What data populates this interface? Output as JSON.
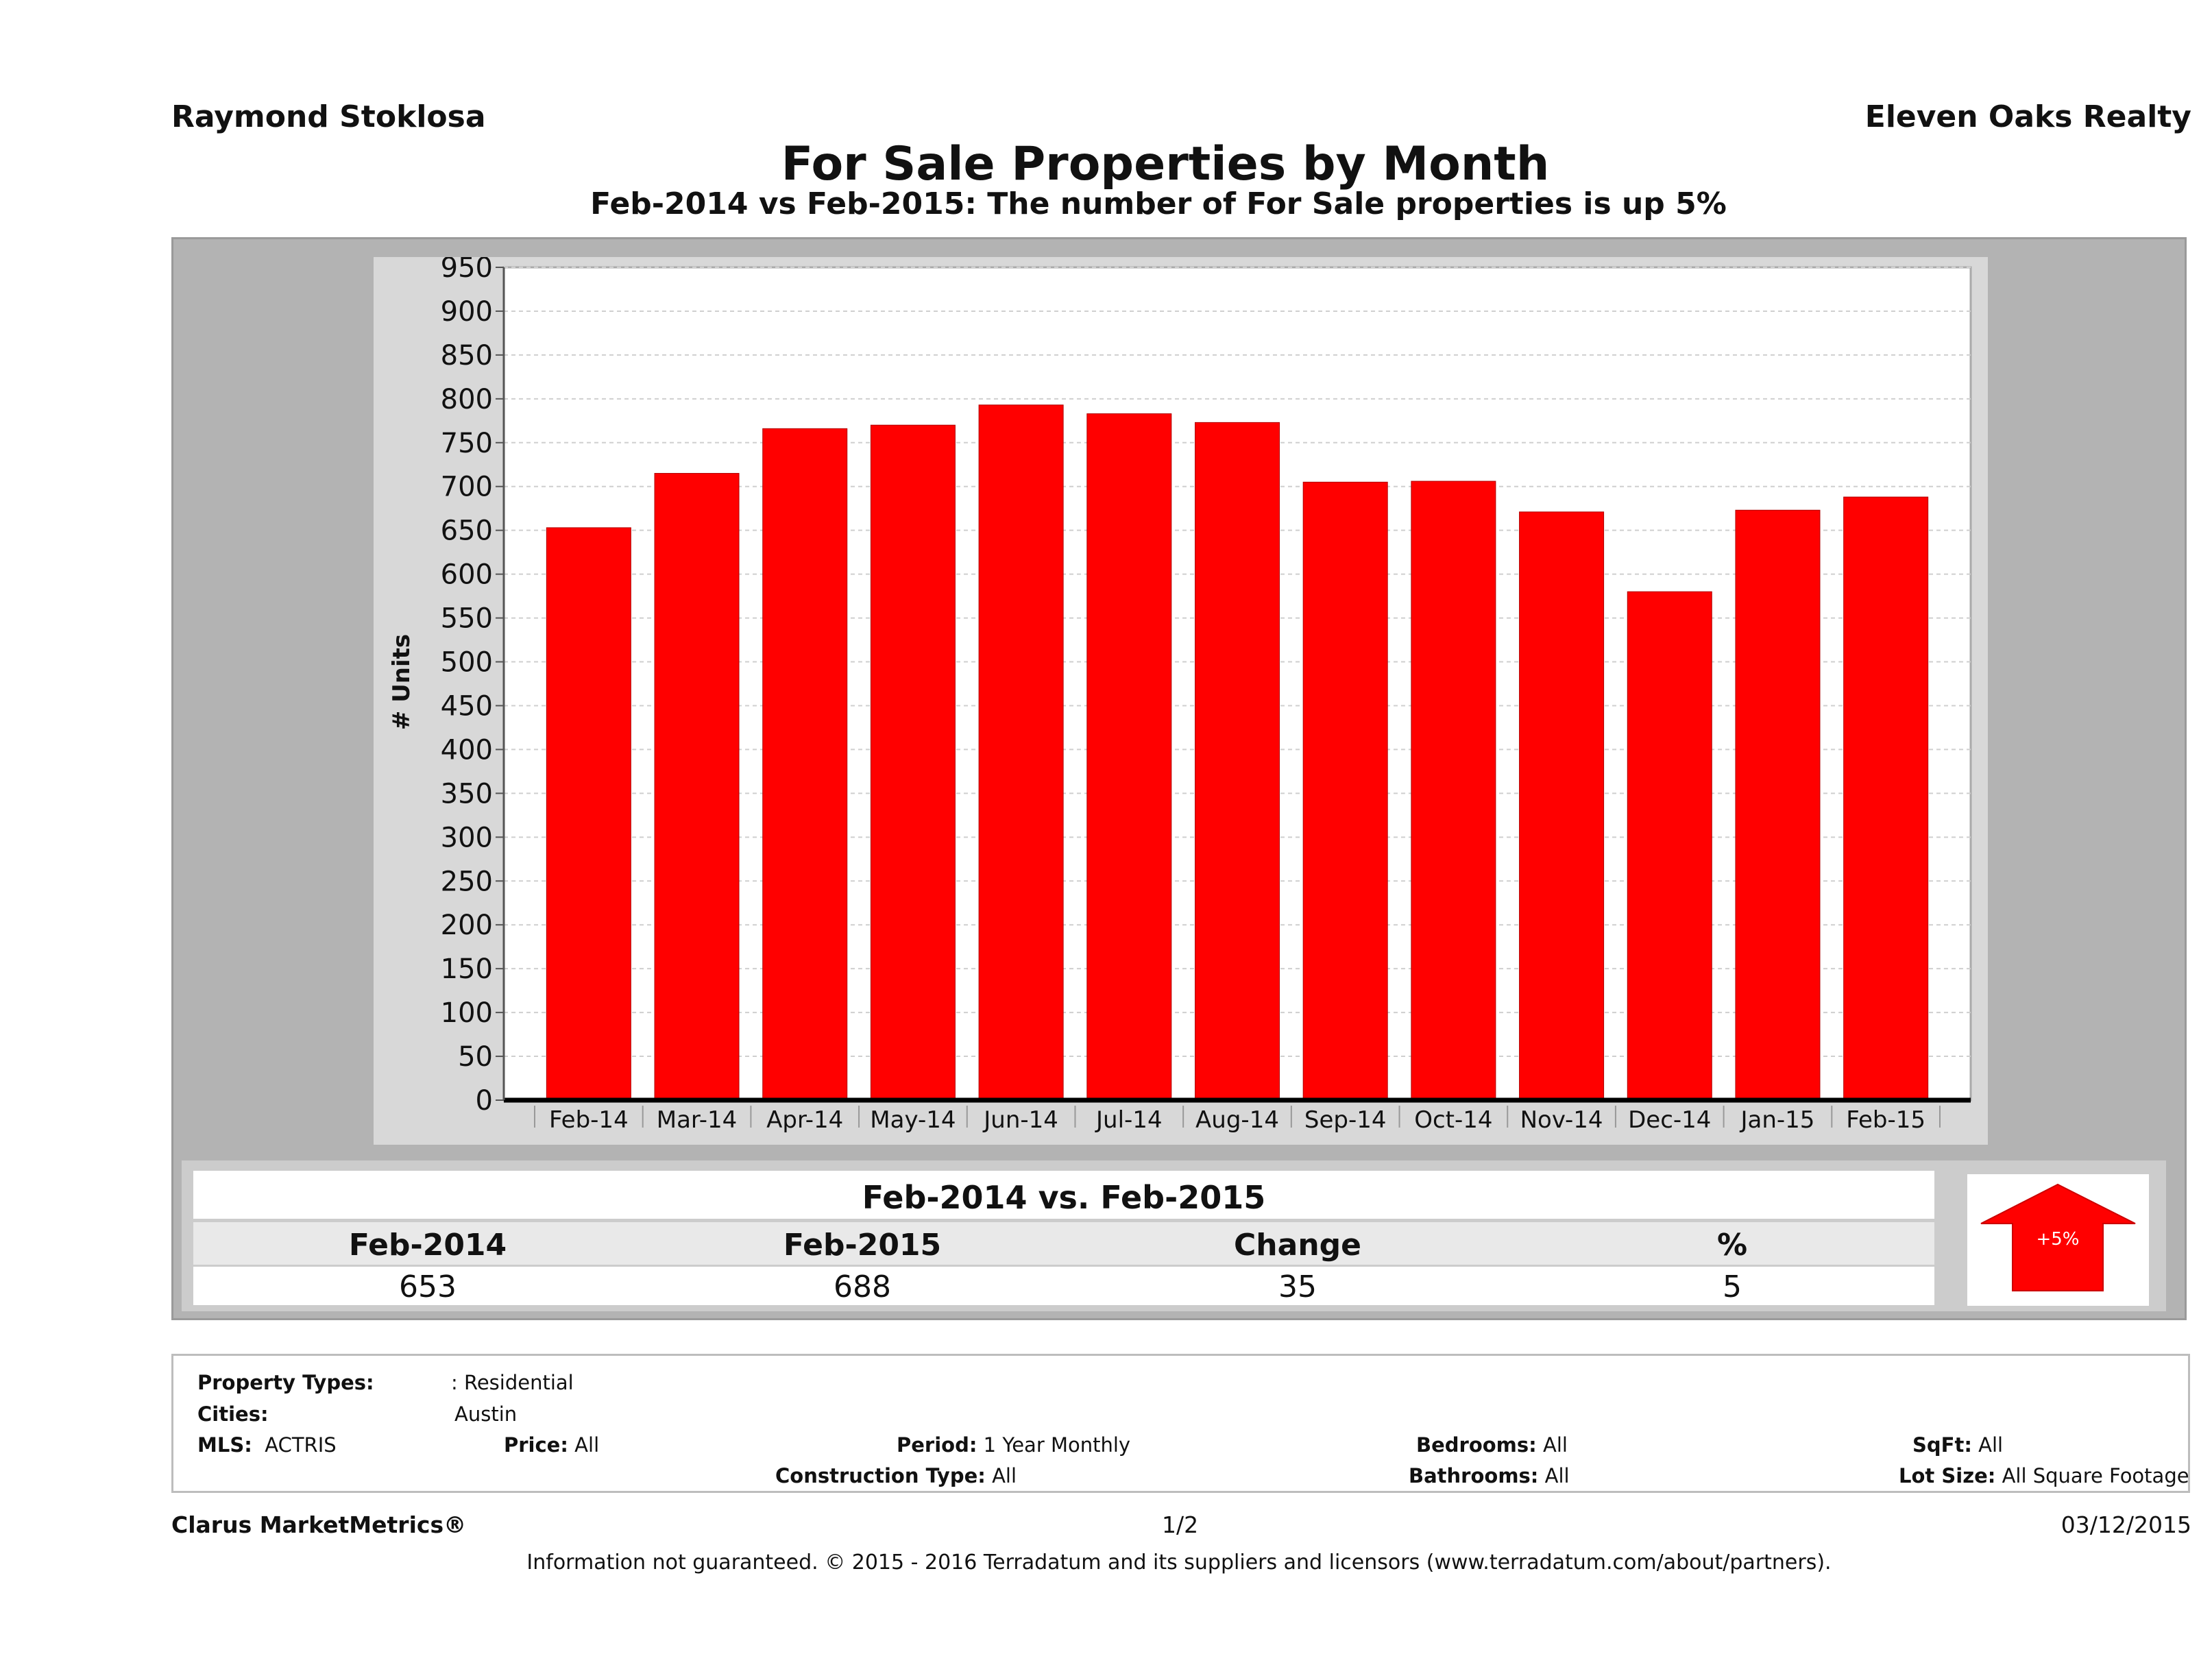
{
  "header": {
    "agent": "Raymond Stoklosa",
    "company": "Eleven Oaks Realty",
    "title": "For Sale Properties by Month",
    "subtitle": "Feb-2014 vs Feb-2015: The number of For Sale   properties is up 5%"
  },
  "chart_data": {
    "type": "bar",
    "categories": [
      "Feb-14",
      "Mar-14",
      "Apr-14",
      "May-14",
      "Jun-14",
      "Jul-14",
      "Aug-14",
      "Sep-14",
      "Oct-14",
      "Nov-14",
      "Dec-14",
      "Jan-15",
      "Feb-15"
    ],
    "values": [
      653,
      715,
      766,
      770,
      793,
      783,
      773,
      705,
      706,
      671,
      580,
      673,
      688
    ],
    "ylabel": "# Units",
    "ylim": [
      0,
      950
    ],
    "yticks": [
      0,
      50,
      100,
      150,
      200,
      250,
      300,
      350,
      400,
      450,
      500,
      550,
      600,
      650,
      700,
      750,
      800,
      850,
      900,
      950
    ],
    "grid": true,
    "bar_color": "#ff0000"
  },
  "summary": {
    "title": "Feb-2014 vs. Feb-2015",
    "headers": [
      "Feb-2014",
      "Feb-2015",
      "Change",
      "%"
    ],
    "values": [
      "653",
      "688",
      "35",
      "5"
    ],
    "badge": "+5%",
    "badge_color": "#ff0000"
  },
  "criteria": {
    "property_types_label": "Property Types:",
    "property_types_value": ": Residential",
    "cities_label": "Cities:",
    "cities_value": "Austin",
    "mls_label": "MLS:",
    "mls_value": "ACTRIS",
    "price_label": "Price:",
    "price_value": "All",
    "period_label": "Period:",
    "period_value": "1 Year Monthly",
    "construction_label": "Construction Type:",
    "construction_value": "All",
    "bedrooms_label": "Bedrooms:",
    "bedrooms_value": "All",
    "bathrooms_label": "Bathrooms:",
    "bathrooms_value": "All",
    "sqft_label": "SqFt:",
    "sqft_value": "All",
    "lot_label": "Lot Size:",
    "lot_value": "All Square Footage"
  },
  "footer": {
    "brand": "Clarus MarketMetrics®",
    "page": "1/2",
    "date": "03/12/2015",
    "disclaimer": "Information not guaranteed. © 2015 - 2016 Terradatum and its suppliers and licensors (www.terradatum.com/about/partners)."
  }
}
